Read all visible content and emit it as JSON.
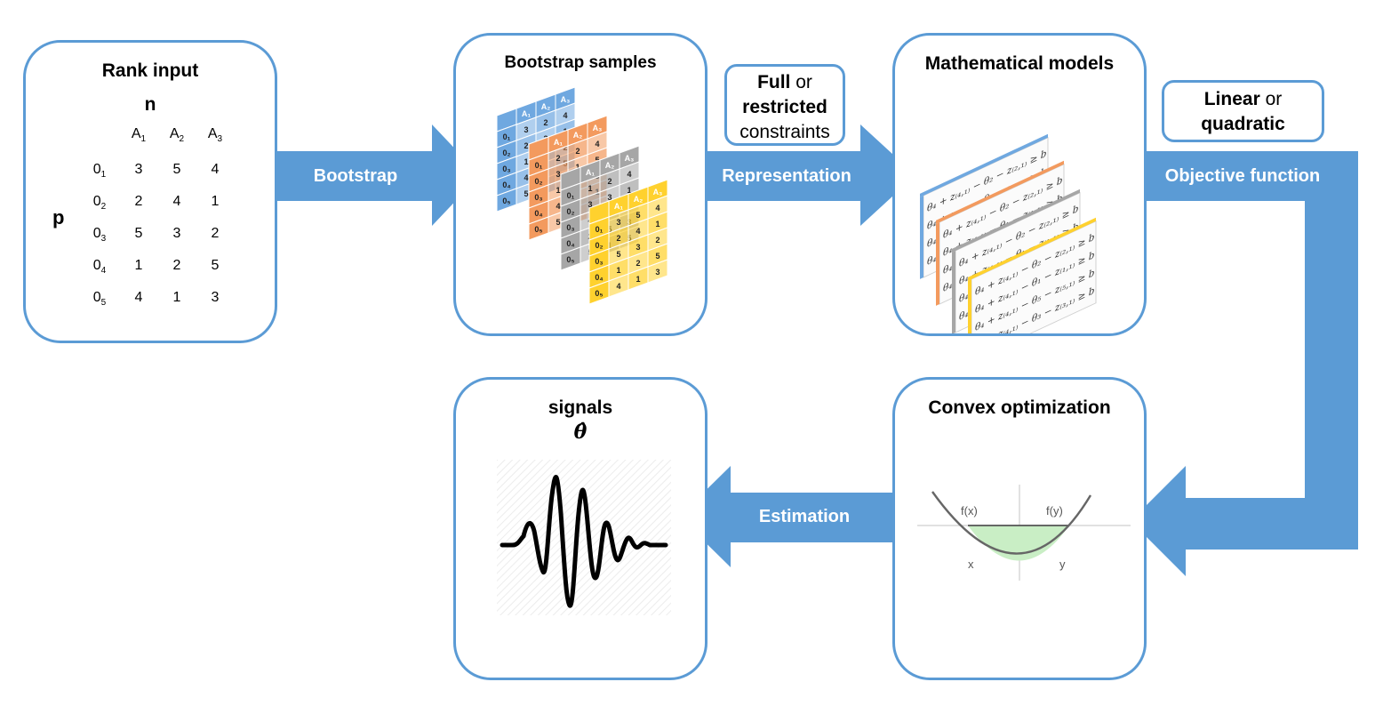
{
  "colors": {
    "accent": "#5b9bd5",
    "blue_layer": "#6fa8e0",
    "orange_layer": "#f39a5e",
    "gray_layer": "#a6a6a6",
    "yellow_layer": "#ffd12e",
    "parabola_fill": "#c9eec5"
  },
  "rank_input": {
    "title": "Rank input",
    "n_label": "n",
    "p_label": "p",
    "col_base": "A",
    "col_subs": [
      "1",
      "2",
      "3"
    ],
    "row_base": "0",
    "row_subs": [
      "1",
      "2",
      "3",
      "4",
      "5"
    ],
    "rows": [
      [
        "3",
        "5",
        "4"
      ],
      [
        "2",
        "4",
        "1"
      ],
      [
        "5",
        "3",
        "2"
      ],
      [
        "1",
        "2",
        "5"
      ],
      [
        "4",
        "1",
        "3"
      ]
    ]
  },
  "bootstrap_samples": {
    "title": "Bootstrap samples",
    "header_glyphs": [
      "A₁",
      "A₂",
      "A₃"
    ],
    "row_glyphs": [
      "0₁",
      "0₂",
      "0₃",
      "0₄",
      "0₅"
    ],
    "layers": [
      {
        "rows": [
          [
            "3",
            "2",
            "4"
          ],
          [
            "2",
            "3",
            "1"
          ],
          [
            "1",
            "4",
            "2"
          ],
          [
            "4",
            "1",
            "5"
          ],
          [
            "5",
            "5",
            "3"
          ]
        ]
      },
      {
        "rows": [
          [
            "2",
            "2",
            "4"
          ],
          [
            "3",
            "1",
            "5"
          ],
          [
            "1",
            "4",
            "3"
          ],
          [
            "4",
            "3",
            "1"
          ],
          [
            "5",
            "5",
            "2"
          ]
        ]
      },
      {
        "rows": [
          [
            "1",
            "2",
            "4"
          ],
          [
            "3",
            "3",
            "1"
          ],
          [
            "4",
            "2",
            "3"
          ],
          [
            "2",
            "5",
            "3"
          ],
          [
            "5",
            "1",
            "5"
          ]
        ]
      },
      {
        "rows": [
          [
            "3",
            "5",
            "4"
          ],
          [
            "2",
            "4",
            "1"
          ],
          [
            "5",
            "3",
            "2"
          ],
          [
            "1",
            "2",
            "5"
          ],
          [
            "4",
            "1",
            "3"
          ]
        ]
      }
    ]
  },
  "math_models": {
    "title": "Mathematical models",
    "equations": [
      "θ₄ + z₍₄,₁₎ − θ₂ − z₍₂,₁₎ ≥ b",
      "θ₄ + z₍₄,₁₎ − θ₁ − z₍₁,₁₎ ≥ b",
      "θ₄ + z₍₄,₁₎ − θ₅ − z₍₅,₁₎ ≥ b",
      "θ₄ + z₍₄,₁₎ − θ₃ − z₍₃,₁₎ ≥ b"
    ]
  },
  "convex": {
    "title": "Convex optimization",
    "fx_label": "f(x)",
    "fy_label": "f(y)",
    "x_label": "x",
    "y_label": "y"
  },
  "signals": {
    "title": "signals",
    "theta": "θ̂"
  },
  "arrows": {
    "bootstrap": "Bootstrap",
    "representation": "Representation",
    "objective": "Objective function",
    "estimation": "Estimation"
  },
  "notes": {
    "constraints": {
      "full": "Full",
      "or1": "or",
      "restricted": "restricted",
      "constraints": "constraints"
    },
    "objective": {
      "linear": "Linear",
      "or": "or",
      "quadratic": "quadratic"
    }
  }
}
